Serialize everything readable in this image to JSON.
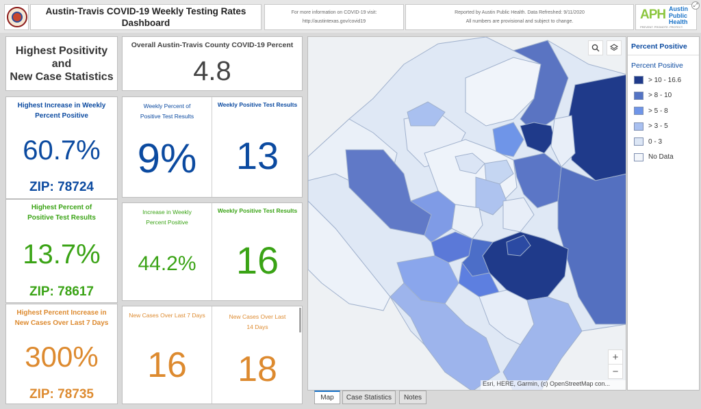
{
  "header": {
    "title_line1": "Austin-Travis COVID-19 Weekly Testing Rates",
    "title_line2": "Dashboard",
    "info_line1": "For more information on COVID-19 visit:",
    "info_line2": "http://austintexas.gov/covid19",
    "report_line1": "Reported by Austin Public Health. Data Refreshed: 9/11/2020",
    "report_line2": "All numbers are provisional and subject to change.",
    "logo_letters": "APH",
    "logo_text1": "Austin",
    "logo_text2": "Public",
    "logo_text3": "Health",
    "logo_tagline": "PREVENT. PROMOTE. PROTECT."
  },
  "left_title": {
    "line1": "Highest Positivity",
    "line2": "and",
    "line3": "New Case Statistics"
  },
  "overall": {
    "label": "Overall Austin-Travis County COVID-19 Percent",
    "value": "4.8"
  },
  "highest_increase": {
    "title_line1": "Highest Increase in Weekly",
    "title_line2": "Percent Positive",
    "value": "60.7%",
    "zip": "ZIP: 78724"
  },
  "highest_percent": {
    "title_line1": "Highest Percent of",
    "title_line2": "Positive Test Results",
    "value": "13.7%",
    "zip": "ZIP: 78617"
  },
  "highest_new_cases": {
    "title_line1": "Highest Percent Increase in",
    "title_line2": "New Cases Over Last 7 Days",
    "value": "300%",
    "zip": "ZIP: 78735"
  },
  "mid_blue": {
    "left_title1": "Weekly Percent of",
    "left_title2": "Positive Test Results",
    "left_value": "9%",
    "right_title": "Weekly Positive Test Results",
    "right_value": "13"
  },
  "mid_green": {
    "left_title1": "Increase in Weekly",
    "left_title2": "Percent Positive",
    "left_value": "44.2%",
    "right_title": "Weekly Positive Test Results",
    "right_value": "16"
  },
  "mid_orange": {
    "left_title": "New Cases Over Last 7 Days",
    "left_value": "16",
    "right_title1": "New Cases Over Last",
    "right_title2": "14 Days",
    "right_value": "18"
  },
  "map": {
    "attribution": "Esri, HERE, Garmin, (c) OpenStreetMap con...",
    "zoom_in": "+",
    "zoom_out": "−",
    "search_icon": "search-icon",
    "layers_icon": "layers-icon"
  },
  "legend": {
    "title": "Percent Positive",
    "subtitle": "Percent Positive",
    "items": [
      {
        "label": "> 10 - 16.6",
        "color": "#1f3a8a"
      },
      {
        "label": "> 8 - 10",
        "color": "#5474c4"
      },
      {
        "label": "> 5 - 8",
        "color": "#6f95e8"
      },
      {
        "label": "> 3 - 5",
        "color": "#a9c0f0"
      },
      {
        "label": "0 - 3",
        "color": "#dce6f5"
      },
      {
        "label": "No Data",
        "color": "#f3f6fb"
      }
    ]
  },
  "tabs": {
    "map": "Map",
    "case_statistics": "Case Statistics",
    "notes": "Notes"
  }
}
